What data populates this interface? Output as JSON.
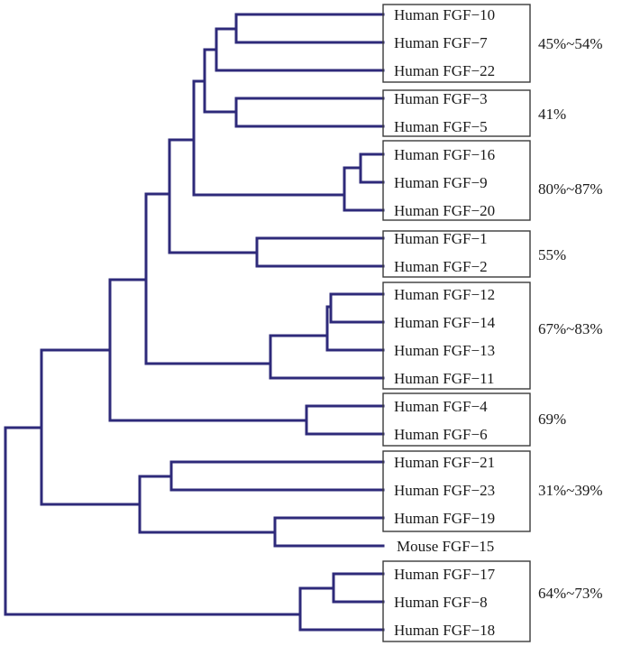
{
  "tree": {
    "leaves": [
      "Human FGF−10",
      "Human FGF−7",
      "Human FGF−22",
      "Human FGF−3",
      "Human FGF−5",
      "Human FGF−16",
      "Human FGF−9",
      "Human FGF−20",
      "Human FGF−1",
      "Human FGF−2",
      "Human FGF−12",
      "Human FGF−14",
      "Human FGF−13",
      "Human FGF−11",
      "Human FGF−4",
      "Human FGF−6",
      "Human FGF−21",
      "Human FGF−23",
      "Human FGF−19",
      "Mouse FGF−15",
      "Human FGF−17",
      "Human FGF−8",
      "Human FGF−18"
    ],
    "groups": [
      {
        "identity": "45%~54%"
      },
      {
        "identity": "41%"
      },
      {
        "identity": "80%~87%"
      },
      {
        "identity": "55%"
      },
      {
        "identity": "67%~83%"
      },
      {
        "identity": "69%"
      },
      {
        "identity": "31%~39%"
      },
      {
        "identity": "64%~73%"
      }
    ]
  },
  "colors": {
    "branch": "#2e2a7a",
    "box": "#3a3a3a",
    "text": "#1a1a1a"
  }
}
